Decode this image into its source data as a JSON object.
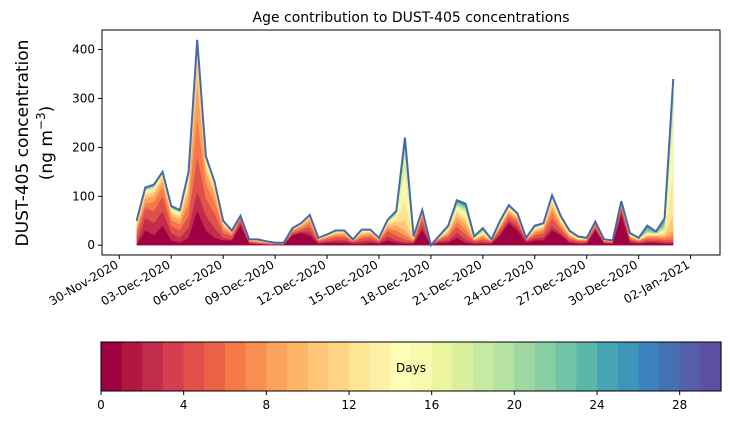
{
  "chart_data": {
    "type": "area",
    "title": "Age contribution to DUST-405 concentrations",
    "ylabel_line1": "DUST-405 concentration",
    "ylabel_line2": "(ng m",
    "ylabel_exp": "−3",
    "ylabel_close": ")",
    "xlabel": "",
    "x_start_day": -1,
    "x_end_day": 34.7,
    "ylim": [
      -20,
      440
    ],
    "yticks": [
      0,
      100,
      200,
      300,
      400
    ],
    "xticks": [
      {
        "day": 0,
        "label": "30-Nov-2020"
      },
      {
        "day": 3,
        "label": "03-Dec-2020"
      },
      {
        "day": 6,
        "label": "06-Dec-2020"
      },
      {
        "day": 9,
        "label": "09-Dec-2020"
      },
      {
        "day": 12,
        "label": "12-Dec-2020"
      },
      {
        "day": 15,
        "label": "15-Dec-2020"
      },
      {
        "day": 18,
        "label": "18-Dec-2020"
      },
      {
        "day": 21,
        "label": "21-Dec-2020"
      },
      {
        "day": 24,
        "label": "24-Dec-2020"
      },
      {
        "day": 27,
        "label": "27-Dec-2020"
      },
      {
        "day": 30,
        "label": "30-Dec-2020"
      },
      {
        "day": 33,
        "label": "02-Jan-2021"
      }
    ],
    "time_days": [
      1,
      1.5,
      2,
      2.5,
      3,
      3.5,
      4,
      4.5,
      5,
      5.5,
      6,
      6.5,
      7,
      7.5,
      8,
      8.5,
      9,
      9.5,
      10,
      10.5,
      11,
      11.5,
      12,
      12.5,
      13,
      13.5,
      14,
      14.5,
      15,
      15.5,
      16,
      16.5,
      17,
      17.5,
      18,
      18.5,
      19,
      19.5,
      20,
      20.5,
      21,
      21.5,
      22,
      22.5,
      23,
      23.5,
      24,
      24.5,
      25,
      25.5,
      26,
      26.5,
      27,
      27.5,
      28,
      28.5,
      29,
      29.5,
      30,
      30.5,
      31,
      31.5,
      32,
      32.5,
      33,
      33.5
    ],
    "total": [
      50,
      118,
      124,
      150,
      80,
      72,
      150,
      420,
      182,
      130,
      50,
      30,
      60,
      12,
      12,
      8,
      5,
      5,
      35,
      45,
      62,
      15,
      22,
      30,
      30,
      12,
      32,
      32,
      15,
      52,
      70,
      220,
      18,
      72,
      0,
      20,
      40,
      92,
      85,
      18,
      35,
      12,
      50,
      82,
      65,
      15,
      40,
      45,
      102,
      60,
      30,
      18,
      15,
      48,
      12,
      10,
      90,
      25,
      15,
      40,
      28,
      55,
      340,
      null,
      null,
      null
    ],
    "age_bands": [
      {
        "max_days": 2,
        "color": "#9e0142",
        "values": [
          0,
          30,
          20,
          40,
          10,
          5,
          15,
          70,
          30,
          15,
          10,
          10,
          40,
          3,
          2,
          1,
          1,
          1,
          20,
          25,
          20,
          3,
          5,
          5,
          5,
          3,
          3,
          5,
          3,
          10,
          5,
          3,
          3,
          30,
          0,
          5,
          5,
          15,
          5,
          3,
          3,
          3,
          20,
          45,
          30,
          5,
          10,
          10,
          30,
          20,
          5,
          3,
          3,
          30,
          3,
          3,
          60,
          5,
          3,
          5,
          5,
          3,
          3,
          null,
          null,
          null
        ]
      },
      {
        "max_days": 4,
        "color": "#c22d4b",
        "values": [
          5,
          55,
          45,
          70,
          25,
          15,
          35,
          110,
          60,
          35,
          15,
          12,
          45,
          5,
          3,
          2,
          1,
          1,
          22,
          28,
          28,
          5,
          8,
          10,
          10,
          5,
          8,
          10,
          5,
          18,
          10,
          6,
          5,
          40,
          0,
          8,
          10,
          25,
          12,
          5,
          6,
          5,
          25,
          50,
          38,
          8,
          14,
          16,
          38,
          24,
          8,
          5,
          5,
          34,
          5,
          4,
          70,
          8,
          5,
          8,
          8,
          6,
          6,
          null,
          null,
          null
        ]
      },
      {
        "max_days": 6,
        "color": "#e1514a",
        "values": [
          20,
          75,
          70,
          100,
          40,
          30,
          60,
          180,
          95,
          65,
          25,
          18,
          52,
          7,
          5,
          3,
          2,
          2,
          26,
          32,
          38,
          8,
          12,
          16,
          16,
          7,
          14,
          16,
          8,
          28,
          20,
          12,
          8,
          52,
          0,
          11,
          17,
          38,
          22,
          8,
          12,
          7,
          32,
          58,
          46,
          10,
          20,
          24,
          55,
          32,
          13,
          8,
          8,
          38,
          7,
          6,
          75,
          12,
          7,
          12,
          12,
          10,
          12,
          null,
          null,
          null
        ]
      },
      {
        "max_days": 8,
        "color": "#f57a4a",
        "values": [
          30,
          85,
          88,
          118,
          52,
          42,
          85,
          260,
          125,
          90,
          33,
          22,
          55,
          8,
          6,
          4,
          3,
          3,
          29,
          36,
          46,
          10,
          15,
          20,
          20,
          8,
          18,
          20,
          10,
          34,
          30,
          20,
          10,
          58,
          0,
          13,
          22,
          48,
          32,
          10,
          16,
          8,
          36,
          64,
          52,
          11,
          24,
          30,
          68,
          38,
          17,
          10,
          10,
          42,
          8,
          7,
          80,
          15,
          9,
          16,
          16,
          14,
          20,
          null,
          null,
          null
        ]
      },
      {
        "max_days": 10,
        "color": "#fba35c",
        "values": [
          36,
          95,
          100,
          130,
          60,
          52,
          105,
          330,
          148,
          105,
          38,
          25,
          57,
          9,
          8,
          5,
          3,
          3,
          31,
          39,
          52,
          11,
          17,
          23,
          24,
          9,
          22,
          24,
          11,
          38,
          40,
          30,
          11,
          62,
          0,
          14,
          26,
          58,
          42,
          11,
          20,
          9,
          38,
          68,
          56,
          12,
          28,
          34,
          78,
          44,
          20,
          11,
          11,
          44,
          9,
          8,
          82,
          17,
          10,
          18,
          18,
          18,
          30,
          null,
          null,
          null
        ]
      },
      {
        "max_days": 12,
        "color": "#fdc679",
        "values": [
          40,
          102,
          108,
          138,
          66,
          58,
          120,
          375,
          160,
          114,
          42,
          27,
          58,
          10,
          9,
          6,
          4,
          4,
          32,
          41,
          56,
          12,
          18,
          25,
          26,
          10,
          25,
          27,
          12,
          42,
          48,
          50,
          12,
          66,
          0,
          15,
          29,
          66,
          52,
          12,
          22,
          10,
          40,
          72,
          58,
          13,
          31,
          37,
          86,
          48,
          22,
          12,
          12,
          45,
          10,
          8,
          84,
          18,
          11,
          20,
          20,
          22,
          60,
          null,
          null,
          null
        ]
      },
      {
        "max_days": 14,
        "color": "#fee593",
        "values": [
          43,
          107,
          113,
          143,
          70,
          62,
          130,
          395,
          168,
          120,
          45,
          28,
          59,
          10,
          10,
          7,
          4,
          4,
          33,
          42,
          58,
          13,
          19,
          27,
          27,
          11,
          27,
          28,
          13,
          45,
          54,
          90,
          13,
          68,
          0,
          16,
          31,
          72,
          60,
          13,
          24,
          10,
          42,
          75,
          60,
          14,
          33,
          39,
          92,
          52,
          24,
          13,
          13,
          46,
          10,
          9,
          86,
          19,
          12,
          22,
          22,
          26,
          140,
          null,
          null,
          null
        ]
      },
      {
        "max_days": 16,
        "color": "#f6f9ae",
        "values": [
          45,
          110,
          116,
          145,
          73,
          65,
          137,
          405,
          172,
          123,
          46,
          29,
          59,
          11,
          10,
          7,
          5,
          4,
          33,
          43,
          59,
          13,
          20,
          28,
          28,
          11,
          28,
          29,
          13,
          47,
          58,
          150,
          14,
          69,
          0,
          17,
          33,
          77,
          66,
          14,
          26,
          11,
          44,
          77,
          61,
          14,
          35,
          41,
          95,
          54,
          25,
          14,
          13,
          47,
          11,
          9,
          87,
          20,
          13,
          24,
          23,
          30,
          250,
          null,
          null,
          null
        ]
      },
      {
        "max_days": 18,
        "color": "#dbf09d",
        "values": [
          46,
          112,
          118,
          146,
          75,
          67,
          141,
          410,
          175,
          125,
          47,
          29,
          60,
          11,
          11,
          7,
          5,
          5,
          34,
          44,
          60,
          14,
          20,
          29,
          29,
          11,
          29,
          30,
          14,
          49,
          62,
          185,
          15,
          70,
          0,
          18,
          35,
          81,
          71,
          15,
          28,
          11,
          46,
          78,
          62,
          14,
          36,
          42,
          97,
          56,
          26,
          15,
          14,
          47,
          11,
          9,
          88,
          21,
          13,
          26,
          24,
          34,
          290,
          null,
          null,
          null
        ]
      },
      {
        "max_days": 20,
        "color": "#b5e1a2",
        "values": [
          47,
          114,
          120,
          147,
          76,
          68,
          144,
          413,
          177,
          126,
          48,
          29,
          60,
          11,
          11,
          7,
          5,
          5,
          34,
          44,
          60,
          14,
          21,
          29,
          29,
          11,
          30,
          30,
          14,
          50,
          65,
          200,
          16,
          71,
          0,
          18,
          36,
          84,
          75,
          16,
          30,
          11,
          47,
          79,
          63,
          14,
          37,
          43,
          99,
          57,
          27,
          16,
          14,
          47,
          11,
          9,
          88,
          22,
          14,
          28,
          25,
          38,
          310,
          null,
          null,
          null
        ]
      },
      {
        "max_days": 22,
        "color": "#88cfa4",
        "values": [
          48,
          115,
          121,
          148,
          77,
          69,
          146,
          415,
          178,
          127,
          48,
          29,
          60,
          11,
          11,
          8,
          5,
          5,
          34,
          44,
          61,
          14,
          21,
          29,
          29,
          11,
          31,
          31,
          14,
          51,
          67,
          208,
          17,
          71,
          0,
          19,
          37,
          87,
          78,
          17,
          32,
          11,
          48,
          80,
          64,
          15,
          38,
          44,
          100,
          58,
          28,
          17,
          14,
          47,
          11,
          10,
          89,
          23,
          14,
          33,
          26,
          44,
          322,
          null,
          null,
          null
        ]
      },
      {
        "max_days": 24,
        "color": "#5cb7a9",
        "values": [
          49,
          116,
          122,
          149,
          78,
          70,
          147,
          417,
          179,
          128,
          49,
          30,
          60,
          12,
          12,
          8,
          5,
          5,
          35,
          45,
          61,
          15,
          21,
          30,
          30,
          12,
          31,
          31,
          15,
          51,
          68,
          213,
          17,
          72,
          0,
          19,
          38,
          89,
          81,
          17,
          33,
          12,
          49,
          81,
          64,
          15,
          39,
          44,
          101,
          59,
          29,
          17,
          15,
          48,
          12,
          10,
          89,
          24,
          15,
          37,
          27,
          50,
          330,
          null,
          null,
          null
        ]
      },
      {
        "max_days": 26,
        "color": "#3d95b8",
        "values": [
          49.5,
          117,
          123,
          149.5,
          79,
          71,
          148,
          418,
          180,
          129,
          49,
          30,
          60,
          12,
          12,
          8,
          5,
          5,
          35,
          45,
          62,
          15,
          22,
          30,
          30,
          12,
          32,
          32,
          15,
          52,
          69,
          217,
          18,
          72,
          0,
          20,
          39,
          91,
          83,
          18,
          34,
          12,
          50,
          82,
          65,
          15,
          40,
          45,
          102,
          60,
          30,
          18,
          15,
          48,
          12,
          10,
          90,
          25,
          15,
          39,
          28,
          53,
          336,
          null,
          null,
          null
        ]
      },
      {
        "max_days": 28,
        "color": "#4f6eb0",
        "values": [
          50,
          118,
          124,
          150,
          80,
          72,
          150,
          420,
          182,
          130,
          50,
          30,
          60,
          12,
          12,
          8,
          5,
          5,
          35,
          45,
          62,
          15,
          22,
          30,
          30,
          12,
          32,
          32,
          15,
          52,
          70,
          220,
          18,
          72,
          0,
          20,
          40,
          92,
          85,
          18,
          35,
          12,
          50,
          82,
          65,
          15,
          40,
          45,
          102,
          60,
          30,
          18,
          15,
          48,
          12,
          10,
          90,
          25,
          15,
          40,
          28,
          55,
          340,
          null,
          null,
          null
        ]
      }
    ],
    "colorbar": {
      "label": "Days",
      "min": 0,
      "max": 30,
      "ticks": [
        0,
        4,
        8,
        12,
        16,
        20,
        24,
        28
      ],
      "colors": [
        "#9e0142",
        "#b2183f",
        "#c22d4b",
        "#d53e4f",
        "#e1514a",
        "#ea6346",
        "#f57a4a",
        "#f98e52",
        "#fba35c",
        "#fdb567",
        "#fdc679",
        "#fed585",
        "#fee593",
        "#fef0a4",
        "#fffcb5",
        "#f6f9ae",
        "#eaf59d",
        "#dbf09d",
        "#c8e9a0",
        "#b5e1a2",
        "#9fd8a4",
        "#88cfa4",
        "#72c4a8",
        "#5cb7a9",
        "#48a5b2",
        "#3d95b8",
        "#3b82be",
        "#4471b3",
        "#5360a8",
        "#5e4fa2"
      ]
    }
  }
}
